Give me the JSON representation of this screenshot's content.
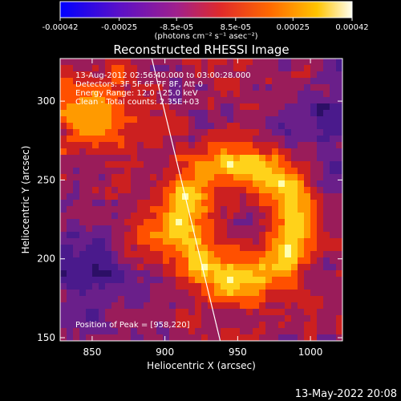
{
  "colorbar": {
    "ticks": [
      "-0.00042",
      "-0.00025",
      "-8.5e-05",
      "8.5e-05",
      "0.00025",
      "0.00042"
    ],
    "tick_values": [
      -0.00042,
      -0.00025,
      -8.5e-05,
      8.5e-05,
      0.00025,
      0.00042
    ],
    "range": [
      -0.00042,
      0.00042
    ],
    "units": "(photons cm⁻² s⁻¹ asec⁻²)",
    "colors": [
      "#0000ff",
      "#7a1fb0",
      "#d0204a",
      "#ff5a00",
      "#ffc000",
      "#ffffff"
    ]
  },
  "chart_data": {
    "type": "heatmap",
    "title": "Reconstructed RHESSI Image",
    "xlabel": "Heliocentric X (arcsec)",
    "ylabel": "Heliocentric Y (arcsec)",
    "xlim": [
      828,
      1022
    ],
    "ylim": [
      148,
      327
    ],
    "xticks": [
      850,
      900,
      950,
      1000
    ],
    "yticks": [
      150,
      200,
      250,
      300
    ],
    "annotations": [
      "13-Aug-2012 02:56:40.000 to 03:00:28.000",
      "Detectors: 3F 5F 6F 7F 8F, Att 0",
      "Energy Range: 12.0 - 25.0 keV",
      "Clean - Total counts: 2.35E+03"
    ],
    "peak_label": "Position of Peak = [958,220]",
    "limb_line": {
      "from": [
        891,
        327
      ],
      "to": [
        938,
        148
      ]
    }
  },
  "footer": {
    "timestamp": "13-May-2022 20:08"
  }
}
